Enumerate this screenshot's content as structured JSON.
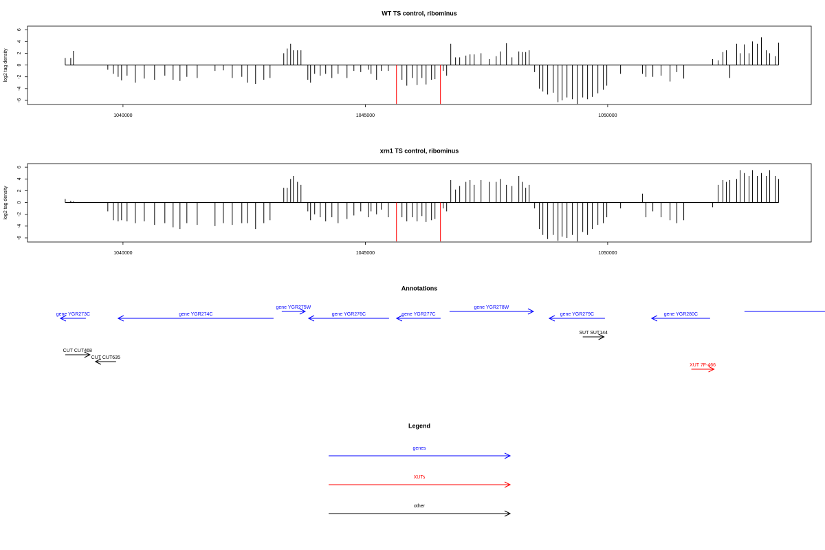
{
  "chart_data": [
    {
      "type": "bar",
      "title": "WT TS control, ribominus",
      "ylabel": "log2 tag density",
      "xlim": [
        1038030,
        1054200
      ],
      "ylim": [
        -6.7,
        6.6
      ],
      "xticks": [
        1040000,
        1045000,
        1050000
      ],
      "yticks": [
        6,
        4,
        2,
        0,
        -2,
        -4,
        -6
      ],
      "series": [
        {
          "color": "#000000",
          "x": [
            1038808,
            1038922,
            1038978,
            1039687,
            1039801,
            1039900,
            1039971,
            1040084,
            1040254,
            1040439,
            1040652,
            1040864,
            1041034,
            1041176,
            1041318,
            1041531,
            1041899,
            1042070,
            1042254,
            1042452,
            1042566,
            1042736,
            1042906,
            1043034,
            1043317,
            1043388,
            1043459,
            1043516,
            1043601,
            1043672,
            1043814,
            1043870,
            1043955,
            1044069,
            1044182,
            1044310,
            1044438,
            1044622,
            1044764,
            1044906,
            1045061,
            1045118,
            1045232,
            1045331,
            1045473,
            1045756,
            1045856,
            1045969,
            1046068,
            1046168,
            1046253,
            1046366,
            1046437,
            1046607,
            1046678,
            1046763,
            1046862,
            1046947,
            1047075,
            1047160,
            1047245,
            1047387,
            1047557,
            1047699,
            1047784,
            1047912,
            1048025,
            1048167,
            1048238,
            1048309,
            1048380,
            1048493,
            1048592,
            1048663,
            1048762,
            1048876,
            1048975,
            1049060,
            1049160,
            1049273,
            1049372,
            1049486,
            1049585,
            1049684,
            1049798,
            1049911,
            1049982,
            1050266,
            1050719,
            1050790,
            1050932,
            1051102,
            1051287,
            1051428,
            1051570,
            1052166,
            1052279,
            1052378,
            1052449,
            1052520,
            1052662,
            1052733,
            1052818,
            1052917,
            1052988,
            1053087,
            1053172,
            1053272,
            1053343,
            1053456,
            1053527
          ],
          "values": [
            1.2,
            1.2,
            2.4,
            -0.8,
            -1.5,
            -2,
            -2.6,
            -1.8,
            -3.0,
            -2.3,
            -2.5,
            -1.8,
            -2.5,
            -2.7,
            -2,
            -2.2,
            -1,
            -0.9,
            -2.2,
            -2,
            -3,
            -3.2,
            -2.5,
            -2.2,
            2,
            2.8,
            3.6,
            2.5,
            2.5,
            2.5,
            -2.5,
            -3,
            -1.5,
            -1.8,
            -1.5,
            -2.2,
            -1.5,
            -2.2,
            -1,
            -1.2,
            -0.8,
            -1.5,
            -2.5,
            -1,
            -1,
            -2.5,
            -3.5,
            -2.2,
            -3.4,
            -2.2,
            -3.3,
            -2.5,
            -2.4,
            -1,
            -1.8,
            3.6,
            1.3,
            1.3,
            1.6,
            1.8,
            1.8,
            2,
            1,
            1.5,
            2.3,
            3.7,
            1.3,
            2.3,
            2.2,
            2.2,
            2.5,
            -1.2,
            -4,
            -4.5,
            -5,
            -4.7,
            -6.3,
            -6,
            -5.5,
            -5.8,
            -6.6,
            -5.5,
            -5.8,
            -5.4,
            -4.8,
            -4.2,
            -3.5,
            -1.5,
            -1.5,
            -2,
            -2,
            -1.8,
            -2.8,
            -1.2,
            -2.3,
            1,
            0.8,
            2.2,
            2.5,
            -2.2,
            3.6,
            2,
            3.5,
            2,
            4,
            3.6,
            4.7,
            2.5,
            2,
            1.5,
            3.8
          ]
        },
        {
          "color": "#ff0000",
          "x": [
            1045643,
            1046550
          ],
          "values": [
            -6.6,
            -6.6
          ]
        }
      ]
    },
    {
      "type": "bar",
      "title": "xrn1 TS control, ribominus",
      "ylabel": "log2 tag density",
      "xlim": [
        1038030,
        1054200
      ],
      "ylim": [
        -6.7,
        6.6
      ],
      "xticks": [
        1040000,
        1045000,
        1050000
      ],
      "yticks": [
        6,
        4,
        2,
        0,
        -2,
        -4,
        -6
      ],
      "series": [
        {
          "color": "#000000",
          "x": [
            1038808,
            1038922,
            1038978,
            1039687,
            1039801,
            1039900,
            1039971,
            1040084,
            1040254,
            1040439,
            1040652,
            1040864,
            1041034,
            1041176,
            1041318,
            1041531,
            1041899,
            1042070,
            1042254,
            1042452,
            1042566,
            1042736,
            1042906,
            1043034,
            1043317,
            1043388,
            1043459,
            1043516,
            1043601,
            1043672,
            1043814,
            1043870,
            1043955,
            1044069,
            1044182,
            1044310,
            1044438,
            1044622,
            1044764,
            1044906,
            1045061,
            1045118,
            1045232,
            1045331,
            1045473,
            1045756,
            1045856,
            1045969,
            1046068,
            1046168,
            1046253,
            1046366,
            1046437,
            1046607,
            1046678,
            1046763,
            1046862,
            1046947,
            1047075,
            1047160,
            1047245,
            1047387,
            1047557,
            1047699,
            1047784,
            1047912,
            1048025,
            1048167,
            1048238,
            1048309,
            1048380,
            1048493,
            1048592,
            1048663,
            1048762,
            1048876,
            1048975,
            1049060,
            1049160,
            1049273,
            1049372,
            1049486,
            1049585,
            1049684,
            1049798,
            1049911,
            1049982,
            1050266,
            1050719,
            1050790,
            1050932,
            1051102,
            1051287,
            1051428,
            1051570,
            1052166,
            1052279,
            1052378,
            1052449,
            1052520,
            1052662,
            1052733,
            1052818,
            1052917,
            1052988,
            1053087,
            1053172,
            1053272,
            1053343,
            1053456,
            1053527
          ],
          "values": [
            0.6,
            0.3,
            0.2,
            -1.5,
            -3,
            -3.2,
            -3,
            -3.2,
            -3.5,
            -3.2,
            -3.8,
            -3.5,
            -4.2,
            -4.5,
            -3.5,
            -3.8,
            -4,
            -3.5,
            -3.8,
            -3.5,
            -3.5,
            -4.5,
            -3.5,
            -3,
            2.5,
            2.5,
            4,
            4.5,
            3.5,
            3,
            -1.5,
            -3,
            -2,
            -2.5,
            -3.2,
            -2.5,
            -3.5,
            -2.8,
            -2.2,
            -1.5,
            -2.5,
            -1.5,
            -2,
            -1.2,
            -2.5,
            -2.5,
            -3.2,
            -2.5,
            -3.2,
            -2.3,
            -3.3,
            -3,
            -2.8,
            -1,
            -1.5,
            3.8,
            2.2,
            2.8,
            3.5,
            3.8,
            3,
            3.8,
            3.5,
            3.5,
            4,
            3,
            2.8,
            4.5,
            3.5,
            2.5,
            3,
            -1,
            -4.5,
            -5.5,
            -6.2,
            -5.5,
            -6.5,
            -5.8,
            -6,
            -5.5,
            -6.6,
            -5,
            -5.5,
            -4.5,
            -3.8,
            -3.5,
            -2.5,
            -1,
            1.5,
            -2.5,
            -1.5,
            -2.5,
            -3,
            -3.5,
            -3,
            -0.8,
            3,
            3.8,
            3.5,
            3.8,
            4,
            5.5,
            5,
            4.5,
            5.5,
            4.5,
            5,
            4.5,
            5.5,
            4.5,
            4
          ]
        },
        {
          "color": "#ff0000",
          "x": [
            1045643,
            1046550
          ],
          "values": [
            -6.6,
            -6.6
          ]
        }
      ]
    }
  ],
  "annotations": {
    "title": "Annotations",
    "features": [
      {
        "label": "gene YGR273C",
        "start": 1038709,
        "end": 1039234,
        "strand": "-",
        "color": "#0000ff"
      },
      {
        "label": "gene YGR274C",
        "start": 1039900,
        "end": 1043106,
        "strand": "-",
        "color": "#0000ff"
      },
      {
        "label": "gene YGR275W",
        "start": 1043276,
        "end": 1043759,
        "strand": "+",
        "color": "#0000ff"
      },
      {
        "label": "gene YGR276C",
        "start": 1043830,
        "end": 1045489,
        "strand": "-",
        "color": "#0000ff"
      },
      {
        "label": "gene YGR277C",
        "start": 1045645,
        "end": 1046553,
        "strand": "-",
        "color": "#0000ff"
      },
      {
        "label": "gene YGR278W",
        "start": 1046737,
        "end": 1048468,
        "strand": "+",
        "color": "#0000ff"
      },
      {
        "label": "gene YGR279C",
        "start": 1048794,
        "end": 1049943,
        "strand": "-",
        "color": "#0000ff"
      },
      {
        "label": "gene YGR280C",
        "start": 1050908,
        "end": 1052113,
        "strand": "-",
        "color": "#0000ff"
      },
      {
        "label": null,
        "start": 1052822,
        "end": 1054700,
        "strand": "+",
        "color": "#0000ff"
      },
      {
        "label": "SUT SUT144",
        "start": 1049486,
        "end": 1049925,
        "strand": "+",
        "color": "#000000"
      },
      {
        "label": "CUT CUT468",
        "start": 1038808,
        "end": 1039318,
        "strand": "+",
        "color": "#000000"
      },
      {
        "label": "CUT CUT635",
        "start": 1039432,
        "end": 1039857,
        "strand": "-",
        "color": "#000000"
      },
      {
        "label": "XUT 7F-466",
        "start": 1051726,
        "end": 1052194,
        "strand": "+",
        "color": "#ff0000"
      }
    ]
  },
  "legend": {
    "title": "Legend",
    "entries": [
      {
        "label": "genes",
        "color": "#0000ff"
      },
      {
        "label": "XUTs",
        "color": "#ff0000"
      },
      {
        "label": "other",
        "color": "#000000"
      }
    ]
  }
}
